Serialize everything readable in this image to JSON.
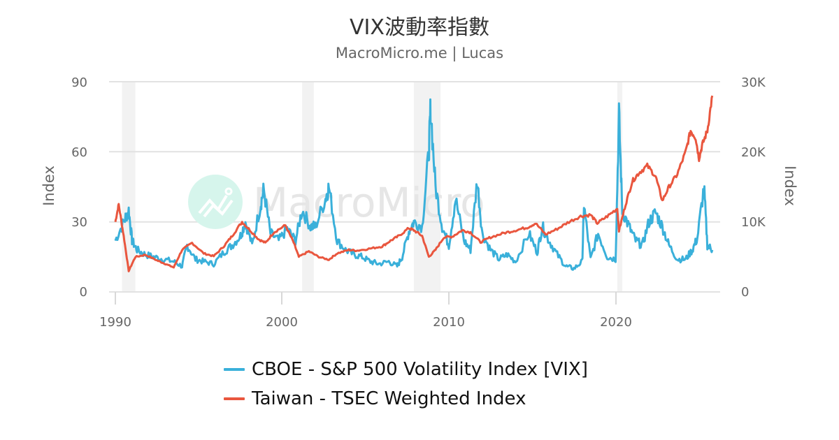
{
  "header": {
    "title": "VIX波動率指數",
    "subtitle": "MacroMicro.me | Lucas"
  },
  "watermark": {
    "text": "MacroMicro"
  },
  "chart_data": {
    "type": "line",
    "title": "VIX波動率指數",
    "subtitle": "MacroMicro.me | Lucas",
    "xlabel": "",
    "ylabel_left": "Index",
    "ylabel_right": "Index",
    "x_ticks": [
      "1990",
      "2000",
      "2010",
      "2020"
    ],
    "y_left_ticks": [
      "0",
      "30",
      "60",
      "90"
    ],
    "y_right_ticks": [
      "0",
      "10K",
      "20K",
      "30K"
    ],
    "ylim_left": [
      0,
      90
    ],
    "ylim_right": [
      0,
      30000
    ],
    "xlim": [
      1989.6,
      2025.9
    ],
    "grid": true,
    "legend_position": "bottom",
    "shaded_periods": [
      {
        "start": 1990.4,
        "end": 1991.2
      },
      {
        "start": 2001.2,
        "end": 2001.9
      },
      {
        "start": 2007.9,
        "end": 2009.5
      },
      {
        "start": 2020.1,
        "end": 2020.4
      }
    ],
    "series": [
      {
        "name": "CBOE - S&P 500 Volatility Index [VIX]",
        "color": "#3ab0da",
        "axis": "left",
        "x": [
          1990.0,
          1990.5,
          1990.8,
          1991.0,
          1991.3,
          1991.8,
          1992.3,
          1992.9,
          1993.5,
          1994.0,
          1994.3,
          1994.8,
          1995.3,
          1995.9,
          1996.5,
          1997.0,
          1997.5,
          1997.8,
          1998.2,
          1998.7,
          1998.9,
          1999.3,
          1999.8,
          2000.3,
          2000.8,
          2001.2,
          2001.7,
          2002.0,
          2002.6,
          2002.8,
          2003.3,
          2003.8,
          2004.3,
          2004.8,
          2005.3,
          2005.8,
          2006.4,
          2006.9,
          2007.2,
          2007.6,
          2007.9,
          2008.4,
          2008.8,
          2008.9,
          2009.2,
          2009.6,
          2010.0,
          2010.4,
          2010.9,
          2011.3,
          2011.7,
          2012.0,
          2012.5,
          2013.0,
          2013.5,
          2014.0,
          2014.8,
          2015.3,
          2015.6,
          2016.0,
          2016.5,
          2017.0,
          2017.5,
          2018.0,
          2018.1,
          2018.5,
          2018.95,
          2019.5,
          2020.0,
          2020.2,
          2020.4,
          2020.8,
          2021.2,
          2021.6,
          2022.0,
          2022.4,
          2022.8,
          2023.2,
          2023.7,
          2024.2,
          2024.6,
          2024.9,
          2025.3,
          2025.5,
          2025.8
        ],
        "values": [
          22,
          30,
          35,
          22,
          18,
          16,
          15,
          14,
          13,
          11,
          20,
          14,
          13,
          12,
          17,
          20,
          24,
          30,
          20,
          37,
          44,
          25,
          22,
          27,
          22,
          35,
          28,
          28,
          40,
          45,
          22,
          18,
          16,
          15,
          13,
          12,
          13,
          11,
          15,
          26,
          30,
          28,
          60,
          79,
          45,
          28,
          20,
          40,
          22,
          18,
          48,
          25,
          18,
          14,
          16,
          13,
          25,
          17,
          28,
          22,
          16,
          11,
          10,
          13,
          37,
          14,
          25,
          15,
          14,
          76,
          35,
          28,
          22,
          20,
          30,
          34,
          28,
          20,
          14,
          14,
          18,
          23,
          45,
          20,
          18
        ]
      },
      {
        "name": "Taiwan - TSEC Weighted Index",
        "color": "#e9563e",
        "axis": "right",
        "x": [
          1990.0,
          1990.2,
          1990.5,
          1990.8,
          1991.2,
          1991.8,
          1992.5,
          1993.0,
          1993.5,
          1994.0,
          1994.6,
          1995.3,
          1995.9,
          1996.5,
          1997.0,
          1997.6,
          1998.0,
          1998.6,
          1999.0,
          1999.5,
          2000.2,
          2000.7,
          2001.0,
          2001.6,
          2002.2,
          2002.8,
          2003.3,
          2004.0,
          2004.5,
          2005.3,
          2006.0,
          2006.5,
          2007.0,
          2007.6,
          2007.9,
          2008.4,
          2008.8,
          2009.2,
          2009.7,
          2010.2,
          2010.8,
          2011.3,
          2011.9,
          2012.5,
          2013.3,
          2014.0,
          2014.7,
          2015.2,
          2015.8,
          2016.5,
          2017.2,
          2017.9,
          2018.5,
          2018.9,
          2019.5,
          2020.1,
          2020.2,
          2020.6,
          2021.0,
          2021.4,
          2021.9,
          2022.4,
          2022.8,
          2023.2,
          2023.7,
          2024.2,
          2024.5,
          2024.8,
          2025.0,
          2025.2,
          2025.5,
          2025.8
        ],
        "values": [
          10000,
          12500,
          8000,
          3000,
          5000,
          5300,
          4500,
          4000,
          3500,
          6000,
          7000,
          5500,
          5100,
          6500,
          8000,
          10000,
          9000,
          7500,
          7000,
          8500,
          9500,
          7000,
          5000,
          5800,
          5000,
          4600,
          5500,
          6000,
          5900,
          6200,
          6500,
          7300,
          8000,
          9100,
          8800,
          8000,
          5000,
          6000,
          7800,
          7900,
          8800,
          8500,
          7100,
          7800,
          8400,
          8800,
          9200,
          9800,
          8200,
          9000,
          10000,
          10800,
          11000,
          9800,
          10800,
          11900,
          8700,
          12500,
          15800,
          17000,
          18000,
          16500,
          13000,
          15000,
          16800,
          20000,
          23000,
          22000,
          19000,
          21000,
          23000,
          28000
        ]
      }
    ]
  },
  "legend": {
    "items": [
      {
        "label": "CBOE - S&P 500 Volatility Index [VIX]",
        "color": "#3ab0da"
      },
      {
        "label": "Taiwan - TSEC Weighted Index",
        "color": "#e9563e"
      }
    ]
  },
  "axes": {
    "left_title": "Index",
    "right_title": "Index",
    "x_ticks": [
      "1990",
      "2000",
      "2010",
      "2020"
    ],
    "y_left": [
      "0",
      "30",
      "60",
      "90"
    ],
    "y_right": [
      "0",
      "10K",
      "20K",
      "30K"
    ]
  }
}
